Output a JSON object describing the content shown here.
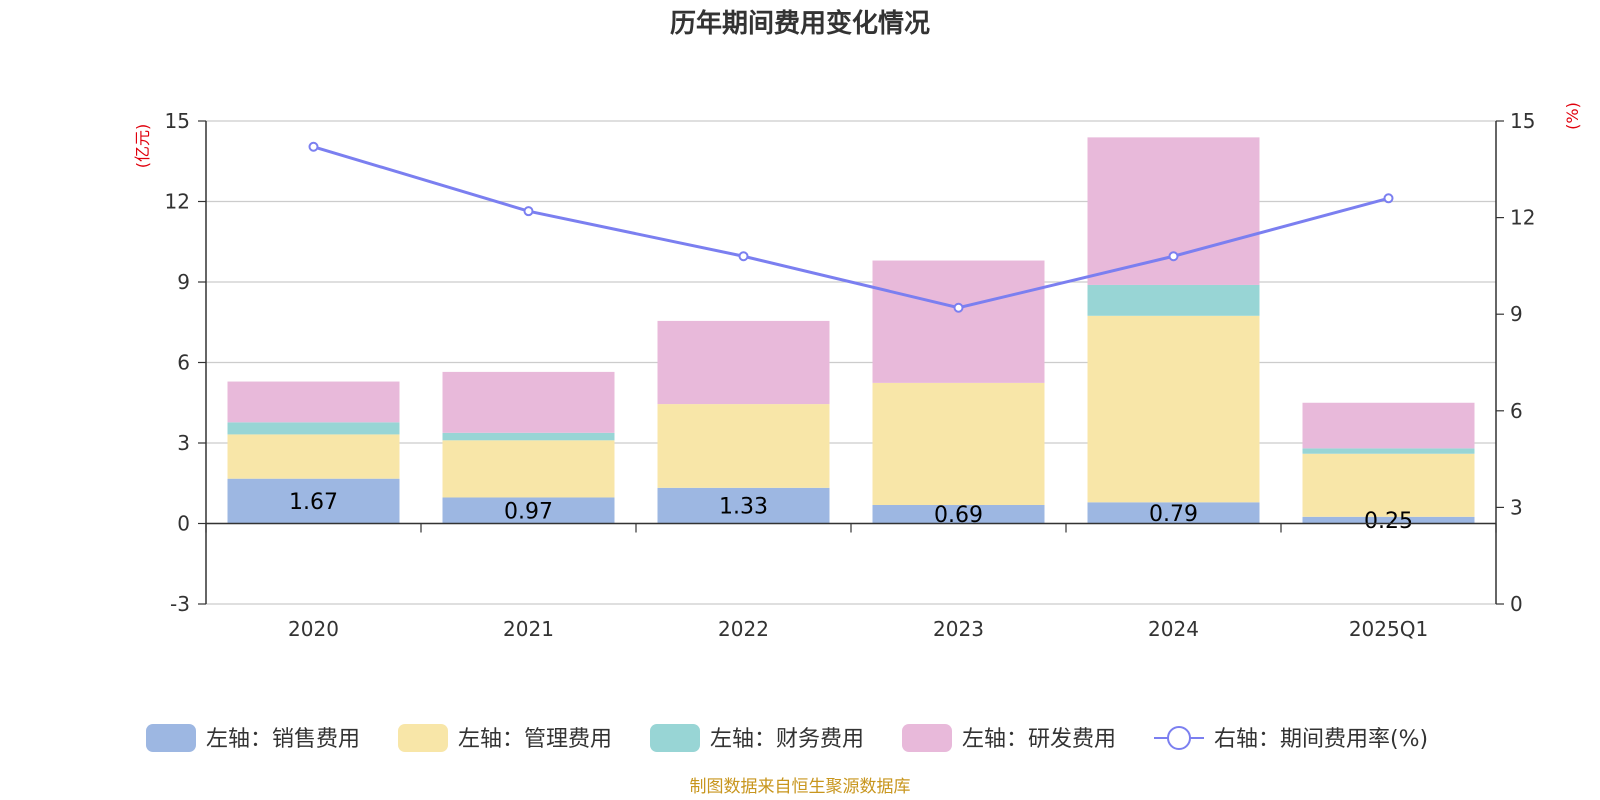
{
  "chart_data": {
    "type": "bar",
    "title": "历年期间费用变化情况",
    "categories": [
      "2020",
      "2021",
      "2022",
      "2023",
      "2024",
      "2025Q1"
    ],
    "left_axis": {
      "unit": "(亿元)",
      "ylim": [
        -3,
        15
      ],
      "ticks": [
        -3,
        0,
        3,
        6,
        9,
        12,
        15
      ]
    },
    "right_axis": {
      "unit": "(%)",
      "ylim": [
        0,
        15
      ],
      "ticks": [
        0,
        3,
        6,
        9,
        12,
        15
      ]
    },
    "series": [
      {
        "name": "左轴：销售费用",
        "type": "bar",
        "stack": "left",
        "color": "#9db7e2",
        "values": [
          1.67,
          0.97,
          1.33,
          0.69,
          0.79,
          0.25
        ],
        "labels": [
          "1.67",
          "0.97",
          "1.33",
          "0.69",
          "0.79",
          "0.25"
        ]
      },
      {
        "name": "左轴：管理费用",
        "type": "bar",
        "stack": "left",
        "color": "#f8e6a8",
        "values": [
          1.65,
          2.13,
          3.12,
          4.55,
          6.95,
          2.35
        ]
      },
      {
        "name": "左轴：财务费用",
        "type": "bar",
        "stack": "left",
        "color": "#98d5d5",
        "values": [
          0.45,
          0.28,
          0.0,
          0.0,
          1.15,
          0.2
        ]
      },
      {
        "name": "左轴：研发费用",
        "type": "bar",
        "stack": "left",
        "color": "#e8b9da",
        "values": [
          1.52,
          2.27,
          3.1,
          4.56,
          5.5,
          1.7
        ]
      },
      {
        "name": "右轴：期间费用率(%)",
        "type": "line",
        "axis": "right",
        "color": "#7b7ff0",
        "values": [
          14.2,
          12.2,
          10.8,
          9.2,
          10.8,
          12.6
        ]
      }
    ]
  },
  "footer": {
    "source": "制图数据来自恒生聚源数据库"
  }
}
